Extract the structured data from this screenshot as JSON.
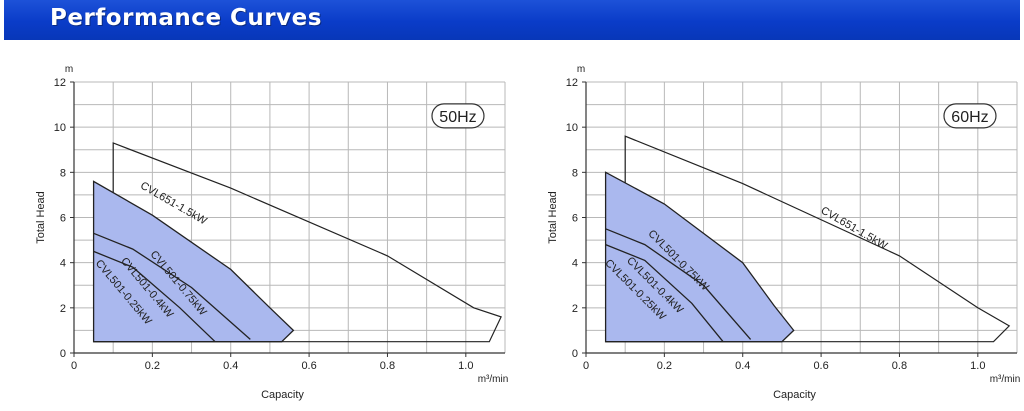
{
  "header": {
    "title": "Performance Curves"
  },
  "colors": {
    "banner": "#0a3cc8",
    "fill": "#aab8ee",
    "line": "#222222",
    "grid": "#b8b8b8"
  },
  "chart_data": [
    {
      "type": "line",
      "frequency_label": "50Hz",
      "xlabel": "Capacity",
      "ylabel": "Total Head",
      "x_unit": "m³/min",
      "y_unit": "m",
      "xlim": [
        0,
        1.1
      ],
      "ylim": [
        0,
        12
      ],
      "x_ticks": [
        "0",
        "0.2",
        "0.4",
        "0.6",
        "0.8",
        "1.0"
      ],
      "y_ticks": [
        "0",
        "2",
        "4",
        "6",
        "8",
        "10",
        "12"
      ],
      "grid": true,
      "series": [
        {
          "name": "CVL651-1.5kW",
          "filled": false,
          "x": [
            0.1,
            0.1,
            0.4,
            0.8,
            1.02,
            1.09,
            1.06,
            0.05
          ],
          "y": [
            0.6,
            9.3,
            7.3,
            4.3,
            2.0,
            1.6,
            0.5,
            0.5
          ]
        },
        {
          "name": "CVL501-0.75kW",
          "filled": true,
          "x": [
            0.05,
            0.05,
            0.2,
            0.4,
            0.5,
            0.56,
            0.53,
            0.05
          ],
          "y": [
            0.5,
            7.6,
            6.1,
            3.7,
            2.0,
            1.0,
            0.5,
            0.5
          ]
        },
        {
          "name": "CVL501-0.4kW",
          "filled": false,
          "x": [
            0.05,
            0.15,
            0.3,
            0.45
          ],
          "y": [
            5.3,
            4.6,
            2.9,
            0.6
          ]
        },
        {
          "name": "CVL501-0.25kW",
          "filled": false,
          "x": [
            0.05,
            0.15,
            0.27,
            0.36
          ],
          "y": [
            4.5,
            3.8,
            2.0,
            0.5
          ]
        }
      ]
    },
    {
      "type": "line",
      "frequency_label": "60Hz",
      "xlabel": "Capacity",
      "ylabel": "Total Head",
      "x_unit": "m³/min",
      "y_unit": "m",
      "xlim": [
        0,
        1.1
      ],
      "ylim": [
        0,
        12
      ],
      "x_ticks": [
        "0",
        "0.2",
        "0.4",
        "0.6",
        "0.8",
        "1.0"
      ],
      "y_ticks": [
        "0",
        "2",
        "4",
        "6",
        "8",
        "10",
        "12"
      ],
      "grid": true,
      "series": [
        {
          "name": "CVL651-1.5kW",
          "filled": false,
          "x": [
            0.1,
            0.1,
            0.4,
            0.8,
            1.0,
            1.08,
            1.04,
            0.05
          ],
          "y": [
            0.6,
            9.6,
            7.5,
            4.3,
            2.0,
            1.2,
            0.5,
            0.5
          ]
        },
        {
          "name": "CVL501-0.75kW",
          "filled": true,
          "x": [
            0.05,
            0.05,
            0.2,
            0.4,
            0.48,
            0.53,
            0.5,
            0.05
          ],
          "y": [
            0.5,
            8.0,
            6.6,
            4.0,
            2.1,
            1.0,
            0.5,
            0.5
          ]
        },
        {
          "name": "CVL501-0.4kW",
          "filled": false,
          "x": [
            0.05,
            0.15,
            0.3,
            0.42
          ],
          "y": [
            5.5,
            4.8,
            3.0,
            0.6
          ]
        },
        {
          "name": "CVL501-0.25kW",
          "filled": false,
          "x": [
            0.05,
            0.15,
            0.27,
            0.35
          ],
          "y": [
            4.8,
            4.1,
            2.2,
            0.5
          ]
        }
      ]
    }
  ]
}
